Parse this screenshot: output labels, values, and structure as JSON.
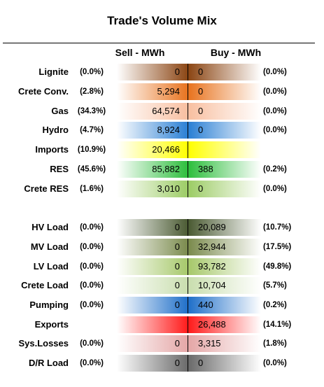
{
  "title": "Trade's Volume Mix",
  "columns": {
    "sell": "Sell - MWh",
    "buy": "Buy - MWh"
  },
  "chart_data": {
    "type": "table",
    "title": "Trade's Volume Mix",
    "columns": [
      "Sell - MWh",
      "Buy - MWh"
    ],
    "rows": [
      {
        "label": "Lignite",
        "sell_pct": "(0.0%)",
        "sell": "0",
        "buy": "0",
        "buy_pct": "(0.0%)",
        "color": "#8b4513",
        "sell_frac": 0.6,
        "buy_frac": 0.6
      },
      {
        "label": "Crete Conv.",
        "sell_pct": "(2.8%)",
        "sell": "5,294",
        "buy": "0",
        "buy_pct": "(0.0%)",
        "color": "#e8731e",
        "sell_frac": 0.75,
        "buy_frac": 0.75
      },
      {
        "label": "Gas",
        "sell_pct": "(34.3%)",
        "sell": "64,574",
        "buy": "0",
        "buy_pct": "(0.0%)",
        "color": "#f8bfa0",
        "sell_frac": 0.6,
        "buy_frac": 0.55
      },
      {
        "label": "Hydro",
        "sell_pct": "(4.7%)",
        "sell": "8,924",
        "buy": "0",
        "buy_pct": "(0.0%)",
        "color": "#2a7fd4",
        "sell_frac": 0.8,
        "buy_frac": 0.8
      },
      {
        "label": "Imports",
        "sell_pct": "(10.9%)",
        "sell": "20,466",
        "buy": "",
        "buy_pct": "",
        "color": "#ffff00",
        "sell_frac": 0.85,
        "buy_frac": 0.85
      },
      {
        "label": "RES",
        "sell_pct": "(45.6%)",
        "sell": "85,882",
        "buy": "388",
        "buy_pct": "(0.2%)",
        "color": "#2dbe3c",
        "sell_frac": 0.75,
        "buy_frac": 0.75
      },
      {
        "label": "Crete RES",
        "sell_pct": "(1.6%)",
        "sell": "3,010",
        "buy": "0",
        "buy_pct": "(0.0%)",
        "color": "#9ccc65",
        "sell_frac": 0.75,
        "buy_frac": 0.7
      },
      {
        "label": "HV Load",
        "sell_pct": "(0.0%)",
        "sell": "0",
        "buy": "20,089",
        "buy_pct": "(10.7%)",
        "color": "#4a5a32",
        "sell_frac": 0.85,
        "buy_frac": 0.85
      },
      {
        "label": "MV Load",
        "sell_pct": "(0.0%)",
        "sell": "0",
        "buy": "32,944",
        "buy_pct": "(17.5%)",
        "color": "#7a8a4c",
        "sell_frac": 0.85,
        "buy_frac": 0.85
      },
      {
        "label": "LV Load",
        "sell_pct": "(0.0%)",
        "sell": "0",
        "buy": "93,782",
        "buy_pct": "(49.8%)",
        "color": "#a6c86a",
        "sell_frac": 0.85,
        "buy_frac": 0.85
      },
      {
        "label": "Crete Load",
        "sell_pct": "(0.0%)",
        "sell": "0",
        "buy": "10,704",
        "buy_pct": "(5.7%)",
        "color": "#c9deae",
        "sell_frac": 0.85,
        "buy_frac": 0.85
      },
      {
        "label": "Pumping",
        "sell_pct": "(0.0%)",
        "sell": "0",
        "buy": "440",
        "buy_pct": "(0.2%)",
        "color": "#1f6fc9",
        "sell_frac": 0.85,
        "buy_frac": 0.85
      },
      {
        "label": "Exports",
        "sell_pct": "",
        "sell": "",
        "buy": "26,488",
        "buy_pct": "(14.1%)",
        "color": "#ff1a1a",
        "sell_frac": 0.85,
        "buy_frac": 0.85
      },
      {
        "label": "Sys.Losses",
        "sell_pct": "(0.0%)",
        "sell": "0",
        "buy": "3,315",
        "buy_pct": "(1.8%)",
        "color": "#e4a6a6",
        "sell_frac": 0.85,
        "buy_frac": 0.85
      },
      {
        "label": "D/R Load",
        "sell_pct": "(0.0%)",
        "sell": "0",
        "buy": "0",
        "buy_pct": "(0.0%)",
        "color": "#6a6a6a",
        "sell_frac": 0.85,
        "buy_frac": 0.85
      }
    ]
  }
}
